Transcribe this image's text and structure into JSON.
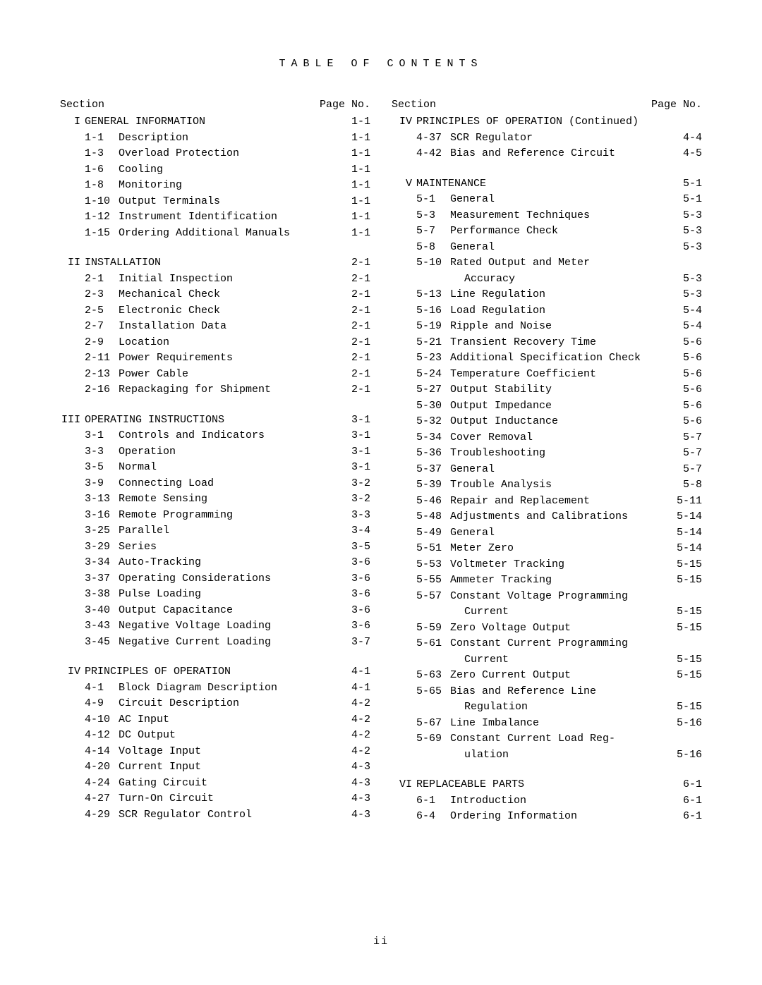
{
  "title": "TABLE OF CONTENTS",
  "labels": {
    "section": "Section",
    "page": "Page No."
  },
  "left": [
    {
      "roman": "I",
      "title": "GENERAL INFORMATION",
      "page": "1-1",
      "items": [
        {
          "n": "1-1",
          "t": "Description",
          "p": "1-1"
        },
        {
          "n": "1-3",
          "t": "Overload Protection",
          "p": "1-1"
        },
        {
          "n": "1-6",
          "t": "Cooling",
          "p": "1-1"
        },
        {
          "n": "1-8",
          "t": "Monitoring",
          "p": "1-1"
        },
        {
          "n": "1-10",
          "t": "Output Terminals",
          "p": "1-1"
        },
        {
          "n": "1-12",
          "t": "Instrument Identification",
          "p": "1-1"
        },
        {
          "n": "1-15",
          "t": "Ordering Additional Manuals",
          "p": "1-1"
        }
      ]
    },
    {
      "roman": "II",
      "title": "INSTALLATION",
      "page": "2-1",
      "items": [
        {
          "n": "2-1",
          "t": "Initial Inspection",
          "p": "2-1"
        },
        {
          "n": "2-3",
          "t": "Mechanical Check",
          "p": "2-1"
        },
        {
          "n": "2-5",
          "t": "Electronic Check",
          "p": "2-1"
        },
        {
          "n": "2-7",
          "t": "Installation Data",
          "p": "2-1"
        },
        {
          "n": "2-9",
          "t": "Location",
          "p": "2-1"
        },
        {
          "n": "2-11",
          "t": "Power Requirements",
          "p": "2-1"
        },
        {
          "n": "2-13",
          "t": "Power Cable",
          "p": "2-1"
        },
        {
          "n": "2-16",
          "t": "Repackaging for Shipment",
          "p": "2-1"
        }
      ]
    },
    {
      "roman": "III",
      "title": "OPERATING INSTRUCTIONS",
      "page": "3-1",
      "items": [
        {
          "n": "3-1",
          "t": "Controls and Indicators",
          "p": "3-1"
        },
        {
          "n": "3-3",
          "t": "Operation",
          "p": "3-1"
        },
        {
          "n": "3-5",
          "t": "Normal",
          "p": "3-1"
        },
        {
          "n": "3-9",
          "t": "Connecting Load",
          "p": "3-2"
        },
        {
          "n": "3-13",
          "t": "Remote Sensing",
          "p": "3-2"
        },
        {
          "n": "3-16",
          "t": "Remote Programming",
          "p": "3-3"
        },
        {
          "n": "3-25",
          "t": "Parallel",
          "p": "3-4"
        },
        {
          "n": "3-29",
          "t": "Series",
          "p": "3-5"
        },
        {
          "n": "3-34",
          "t": "Auto-Tracking",
          "p": "3-6"
        },
        {
          "n": "3-37",
          "t": "Operating Considerations",
          "p": "3-6"
        },
        {
          "n": "3-38",
          "t": "Pulse Loading",
          "p": "3-6"
        },
        {
          "n": "3-40",
          "t": "Output Capacitance",
          "p": "3-6"
        },
        {
          "n": "3-43",
          "t": "Negative Voltage Loading",
          "p": "3-6"
        },
        {
          "n": "3-45",
          "t": "Negative Current Loading",
          "p": "3-7"
        }
      ]
    },
    {
      "roman": "IV",
      "title": "PRINCIPLES OF OPERATION",
      "page": "4-1",
      "items": [
        {
          "n": "4-1",
          "t": "Block Diagram Description",
          "p": "4-1"
        },
        {
          "n": "4-9",
          "t": "Circuit Description",
          "p": "4-2"
        },
        {
          "n": "4-10",
          "t": "AC Input",
          "p": "4-2"
        },
        {
          "n": "4-12",
          "t": "DC Output",
          "p": "4-2"
        },
        {
          "n": "4-14",
          "t": "Voltage Input",
          "p": "4-2"
        },
        {
          "n": "4-20",
          "t": "Current Input",
          "p": "4-3"
        },
        {
          "n": "4-24",
          "t": "Gating Circuit",
          "p": "4-3"
        },
        {
          "n": "4-27",
          "t": "Turn-On Circuit",
          "p": "4-3"
        },
        {
          "n": "4-29",
          "t": "SCR Regulator Control",
          "p": "4-3"
        }
      ]
    }
  ],
  "right": [
    {
      "roman": "IV",
      "title": "PRINCIPLES OF OPERATION (Continued)",
      "page": "",
      "items": [
        {
          "n": "4-37",
          "t": "SCR Regulator",
          "p": "4-4"
        },
        {
          "n": "4-42",
          "t": "Bias and Reference Circuit",
          "p": "4-5"
        }
      ]
    },
    {
      "roman": "V",
      "title": "MAINTENANCE",
      "page": "5-1",
      "items": [
        {
          "n": "5-1",
          "t": "General",
          "p": "5-1"
        },
        {
          "n": "5-3",
          "t": "Measurement Techniques",
          "p": "5-3"
        },
        {
          "n": "5-7",
          "t": "Performance Check",
          "p": "5-3"
        },
        {
          "n": "5-8",
          "t": "General",
          "p": "5-3"
        },
        {
          "n": "5-10",
          "t": "Rated Output and Meter",
          "p": ""
        },
        {
          "n": "",
          "t": "Accuracy",
          "p": "5-3",
          "indent": true
        },
        {
          "n": "5-13",
          "t": "Line Regulation",
          "p": "5-3"
        },
        {
          "n": "5-16",
          "t": "Load Regulation",
          "p": "5-4"
        },
        {
          "n": "5-19",
          "t": "Ripple and Noise",
          "p": "5-4"
        },
        {
          "n": "5-21",
          "t": "Transient Recovery Time",
          "p": "5-6"
        },
        {
          "n": "5-23",
          "t": "Additional Specification Check",
          "p": "5-6"
        },
        {
          "n": "5-24",
          "t": "Temperature Coefficient",
          "p": "5-6"
        },
        {
          "n": "5-27",
          "t": "Output Stability",
          "p": "5-6"
        },
        {
          "n": "5-30",
          "t": "Output Impedance",
          "p": "5-6"
        },
        {
          "n": "5-32",
          "t": "Output Inductance",
          "p": "5-6"
        },
        {
          "n": "5-34",
          "t": "Cover Removal",
          "p": "5-7"
        },
        {
          "n": "5-36",
          "t": "Troubleshooting",
          "p": "5-7"
        },
        {
          "n": "5-37",
          "t": "General",
          "p": "5-7"
        },
        {
          "n": "5-39",
          "t": "Trouble Analysis",
          "p": "5-8"
        },
        {
          "n": "5-46",
          "t": "Repair and Replacement",
          "p": "5-11"
        },
        {
          "n": "5-48",
          "t": "Adjustments and Calibrations",
          "p": "5-14"
        },
        {
          "n": "5-49",
          "t": "General",
          "p": "5-14"
        },
        {
          "n": "5-51",
          "t": "Meter Zero",
          "p": "5-14"
        },
        {
          "n": "5-53",
          "t": "Voltmeter Tracking",
          "p": "5-15"
        },
        {
          "n": "5-55",
          "t": "Ammeter Tracking",
          "p": "5-15"
        },
        {
          "n": "5-57",
          "t": "Constant Voltage Programming",
          "p": ""
        },
        {
          "n": "",
          "t": "Current",
          "p": "5-15",
          "indent": true
        },
        {
          "n": "5-59",
          "t": "Zero Voltage Output",
          "p": "5-15"
        },
        {
          "n": "5-61",
          "t": "Constant Current Programming",
          "p": ""
        },
        {
          "n": "",
          "t": "Current",
          "p": "5-15",
          "indent": true
        },
        {
          "n": "5-63",
          "t": "Zero Current Output",
          "p": "5-15"
        },
        {
          "n": "5-65",
          "t": "Bias and Reference Line",
          "p": ""
        },
        {
          "n": "",
          "t": "Regulation",
          "p": "5-15",
          "indent": true
        },
        {
          "n": "5-67",
          "t": "Line Imbalance",
          "p": "5-16"
        },
        {
          "n": "5-69",
          "t": "Constant Current Load Reg-",
          "p": ""
        },
        {
          "n": "",
          "t": "ulation",
          "p": "5-16",
          "indent": true
        }
      ]
    },
    {
      "roman": "VI",
      "title": "REPLACEABLE PARTS",
      "page": "6-1",
      "items": [
        {
          "n": "6-1",
          "t": "Introduction",
          "p": "6-1"
        },
        {
          "n": "6-4",
          "t": "Ordering Information",
          "p": "6-1"
        }
      ]
    }
  ],
  "footer": "ii"
}
